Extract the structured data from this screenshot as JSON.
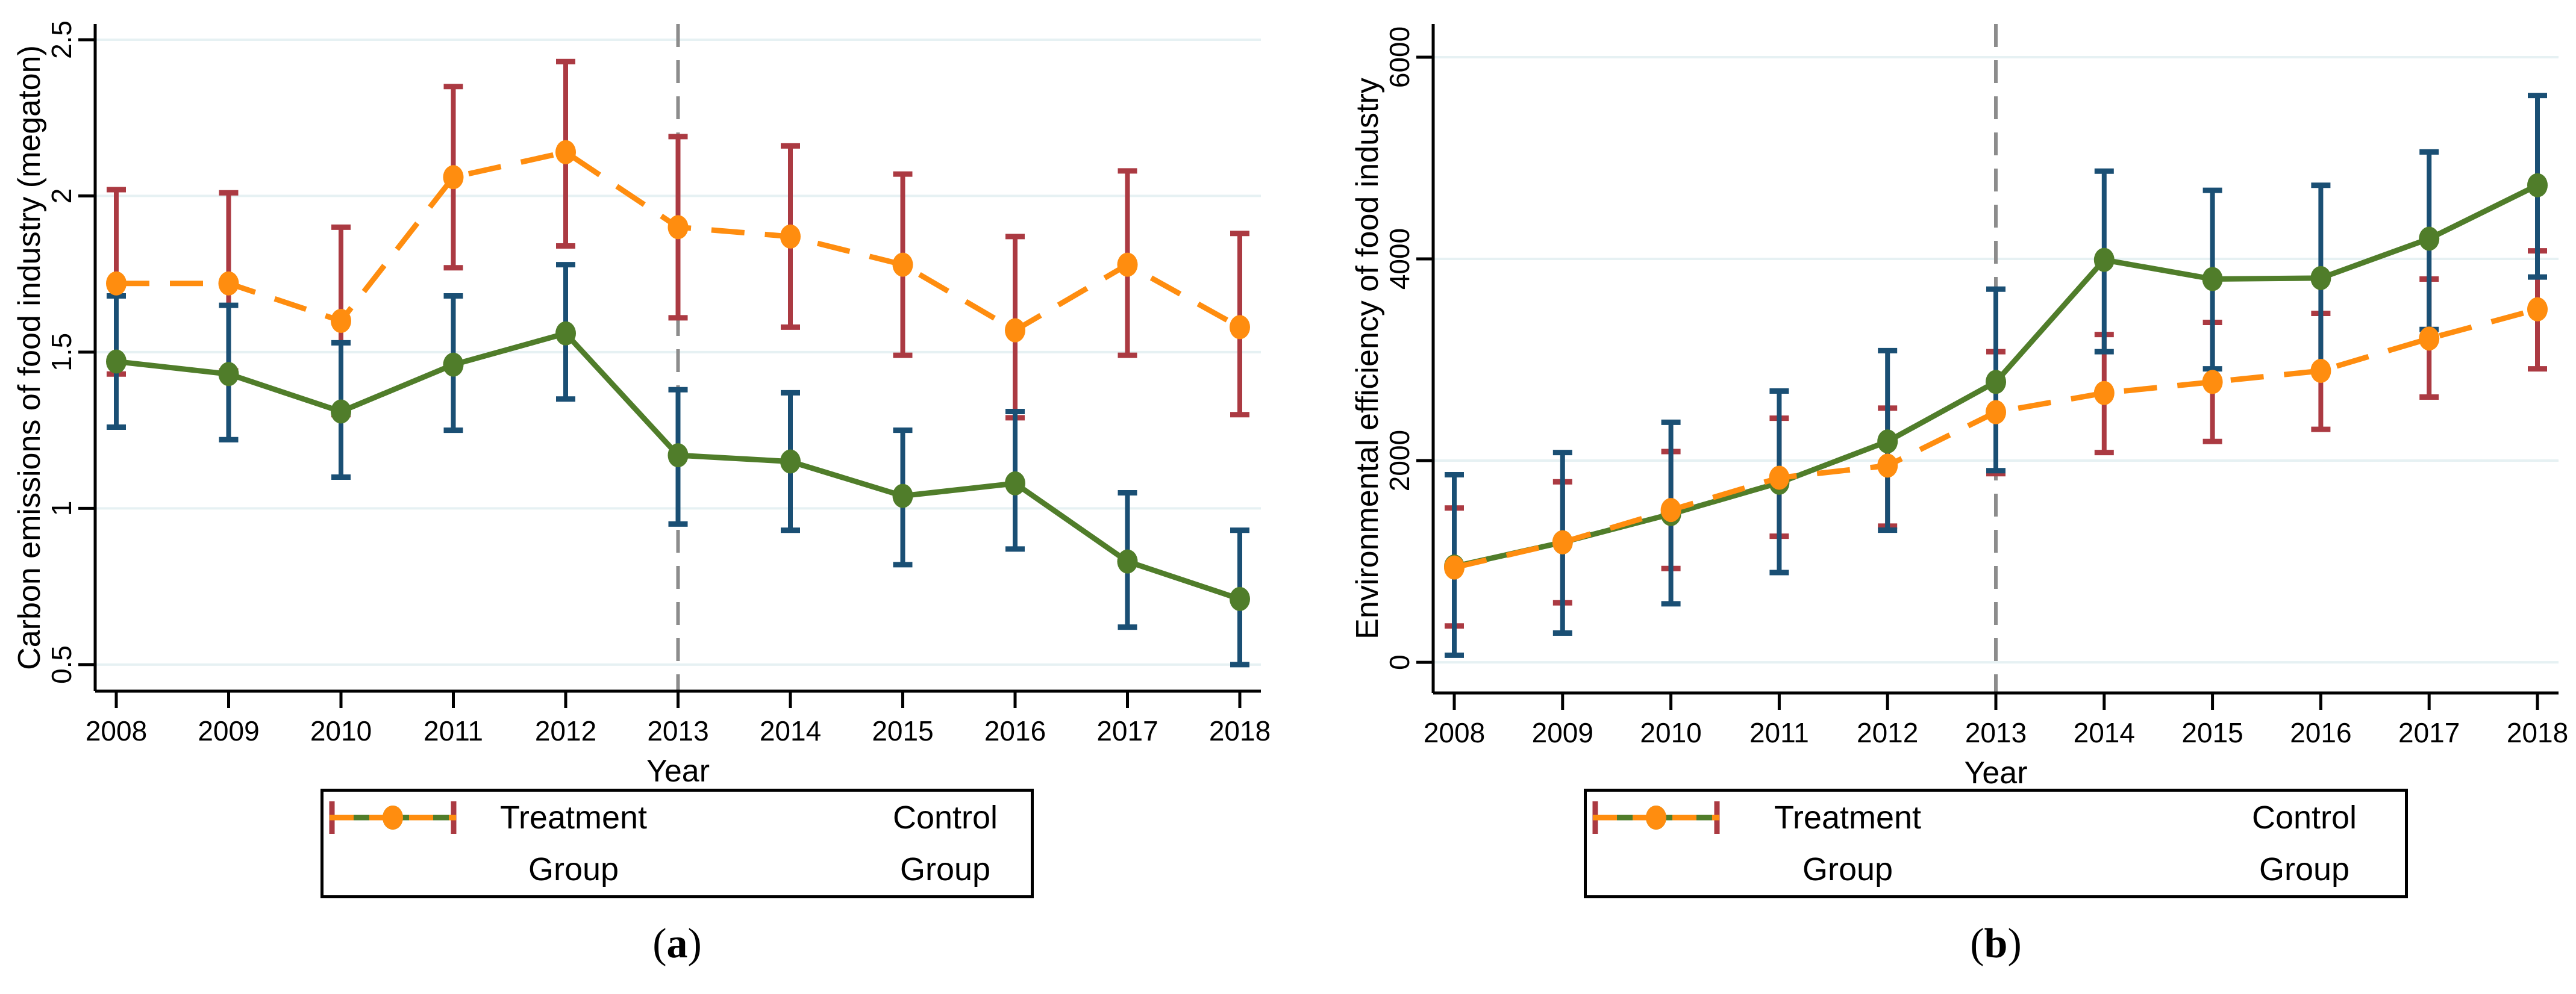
{
  "colors": {
    "treatment_line": "#507d2a",
    "treatment_error": "#1a4f74",
    "control_line": "#ff8d0f",
    "control_error": "#ab3a42",
    "reference_line": "#8c8c8c",
    "gridline": "#e6f1f3",
    "axis": "#000000",
    "background": "#ffffff"
  },
  "legend": {
    "treatment_row1": "Treatment",
    "treatment_row2": "Group",
    "control_row1": "Control",
    "control_row2": "Group"
  },
  "captions": {
    "paren_open": "(",
    "paren_close": ")",
    "a_letter": "a",
    "b_letter": "b"
  },
  "chart_data": [
    {
      "id": "a",
      "type": "line",
      "title": "",
      "xlabel": "Year",
      "ylabel": "Carbon emissions of food industry (megaton)",
      "x": [
        2008,
        2009,
        2010,
        2011,
        2012,
        2013,
        2014,
        2015,
        2016,
        2017,
        2018
      ],
      "x_tick_labels": [
        "2008",
        "2009",
        "2010",
        "2011",
        "2012",
        "2013",
        "2014",
        "2015",
        "2016",
        "2017",
        "2018"
      ],
      "y_ticks": [
        0.5,
        1,
        1.5,
        2,
        2.5
      ],
      "y_tick_labels": [
        "0.5",
        "1",
        "1.5",
        "2",
        "2.5"
      ],
      "ylim": [
        0.415,
        2.55
      ],
      "grid": true,
      "error_bars": true,
      "reference_line_x": 2013,
      "legend_position": "bottom",
      "series": [
        {
          "name": "Treatment Group",
          "style": "solid",
          "color": "#507d2a",
          "error_color": "#1a4f74",
          "values": [
            1.47,
            1.43,
            1.31,
            1.46,
            1.56,
            1.17,
            1.15,
            1.04,
            1.08,
            0.83,
            0.71
          ],
          "ci_low": [
            1.26,
            1.22,
            1.1,
            1.25,
            1.35,
            0.95,
            0.93,
            0.82,
            0.87,
            0.62,
            0.5
          ],
          "ci_high": [
            1.68,
            1.65,
            1.53,
            1.68,
            1.78,
            1.38,
            1.37,
            1.25,
            1.31,
            1.05,
            0.93
          ]
        },
        {
          "name": "Control Group",
          "style": "dashed",
          "color": "#ff8d0f",
          "error_color": "#ab3a42",
          "values": [
            1.72,
            1.72,
            1.6,
            2.06,
            2.14,
            1.9,
            1.87,
            1.78,
            1.57,
            1.78,
            1.58
          ],
          "ci_low": [
            1.43,
            1.44,
            1.3,
            1.77,
            1.84,
            1.61,
            1.58,
            1.49,
            1.29,
            1.49,
            1.3
          ],
          "ci_high": [
            2.02,
            2.01,
            1.9,
            2.35,
            2.43,
            2.19,
            2.16,
            2.07,
            1.87,
            2.08,
            1.88
          ]
        }
      ]
    },
    {
      "id": "b",
      "type": "line",
      "title": "",
      "xlabel": "Year",
      "ylabel": "Environmental efficiency of food industry",
      "x": [
        2008,
        2009,
        2010,
        2011,
        2012,
        2013,
        2014,
        2015,
        2016,
        2017,
        2018
      ],
      "x_tick_labels": [
        "2008",
        "2009",
        "2010",
        "2011",
        "2012",
        "2013",
        "2014",
        "2015",
        "2016",
        "2017",
        "2018"
      ],
      "y_ticks": [
        0,
        2000,
        4000,
        6000
      ],
      "y_tick_labels": [
        "0",
        "2000",
        "4000",
        "6000"
      ],
      "ylim": [
        -304,
        6328
      ],
      "grid": true,
      "error_bars": true,
      "reference_line_x": 2013,
      "legend_position": "bottom",
      "series": [
        {
          "name": "Treatment Group",
          "style": "solid",
          "color": "#507d2a",
          "error_color": "#1a4f74",
          "values": [
            950,
            1190,
            1470,
            1780,
            2190,
            2780,
            3990,
            3800,
            3810,
            4200,
            4730
          ],
          "ci_low": [
            70,
            290,
            580,
            890,
            1310,
            1900,
            3080,
            2910,
            2880,
            3300,
            3820
          ],
          "ci_high": [
            1860,
            2080,
            2380,
            2690,
            3090,
            3700,
            4870,
            4680,
            4730,
            5060,
            5620
          ]
        },
        {
          "name": "Control Group",
          "style": "dashed",
          "color": "#ff8d0f",
          "error_color": "#ab3a42",
          "values": [
            940,
            1190,
            1510,
            1830,
            1950,
            2480,
            2670,
            2780,
            2890,
            3210,
            3500
          ],
          "ci_low": [
            360,
            590,
            930,
            1250,
            1350,
            1870,
            2080,
            2190,
            2310,
            2630,
            2910
          ],
          "ci_high": [
            1530,
            1790,
            2090,
            2420,
            2520,
            3080,
            3250,
            3370,
            3460,
            3800,
            4080
          ]
        }
      ]
    }
  ]
}
